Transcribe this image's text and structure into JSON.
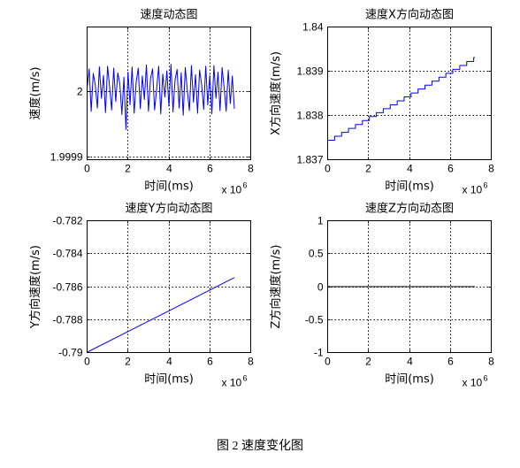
{
  "figure": {
    "caption": "图 2 速度变化图"
  },
  "chart_data": [
    {
      "type": "line",
      "title": "速度动态图",
      "xlabel": "时间(ms)",
      "ylabel": "速度(m/s)",
      "x_multiplier": {
        "base": "x 10",
        "exponent": "6"
      },
      "xticks": [
        "0",
        "2",
        "4",
        "6",
        "8"
      ],
      "yticks": [
        "1.9999",
        "2"
      ],
      "xlim": [
        0,
        8
      ],
      "ylim": [
        1.999896,
        2.000099
      ],
      "grid": true,
      "line_color": "#0000ff",
      "series": [
        {
          "x": [
            0,
            0.1,
            0.2,
            0.3,
            0.4,
            0.5,
            0.6,
            0.7,
            0.8,
            0.9,
            1,
            1.1,
            1.2,
            1.3,
            1.4,
            1.5,
            1.6,
            1.7,
            1.8,
            1.9,
            2,
            2.1,
            2.2,
            2.3,
            2.4,
            2.5,
            2.6,
            2.7,
            2.8,
            2.9,
            3,
            3.1,
            3.2,
            3.3,
            3.4,
            3.5,
            3.6,
            3.7,
            3.8,
            3.9,
            4,
            4.1,
            4.2,
            4.3,
            4.4,
            4.5,
            4.6,
            4.7,
            4.8,
            4.9,
            5,
            5.1,
            5.2,
            5.3,
            5.4,
            5.5,
            5.6,
            5.7,
            5.8,
            5.9,
            6,
            6.1,
            6.2,
            6.3,
            6.4,
            6.5,
            6.6,
            6.7,
            6.8,
            6.9,
            7,
            7.1,
            7.2
          ],
          "y": [
            2.000005,
            2.000035,
            1.99997,
            2.000028,
            2.00001,
            1.999975,
            2.000038,
            1.99999,
            2.000025,
            1.999968,
            2.000039,
            2.000008,
            1.999972,
            2.000036,
            1.999985,
            2.000029,
            2.000012,
            1.999965,
            2.000022,
            1.999942,
            2.00003,
            1.99998,
            2.000038,
            1.999967,
            2.000015,
            2.000036,
            1.999974,
            2.000024,
            1.999988,
            2.000041,
            1.99997,
            2.00002,
            2.000035,
            1.999972,
            2.000004,
            2.000039,
            1.999966,
            2.000027,
            1.999992,
            2.000032,
            1.999978,
            2.000042,
            1.999969,
            2.000018,
            2.000034,
            1.999975,
            2.000029,
            1.999964,
            2.000037,
            2.000002,
            1.999971,
            2.00004,
            1.999984,
            2.000026,
            1.999967,
            2.000033,
            2.000011,
            1.999973,
            2.000039,
            1.99998,
            2.000025,
            1.999966,
            2.00004,
            1.99999,
            2.00003,
            1.999971,
            2.000037,
            2.000006,
            1.99997,
            2.000033,
            1.999982,
            2.000024,
            1.999974
          ]
        }
      ]
    },
    {
      "type": "line",
      "title": "速度X方向动态图",
      "xlabel": "时间(ms)",
      "ylabel": "X方向速度(m/s)",
      "x_multiplier": {
        "base": "x 10",
        "exponent": "6"
      },
      "xticks": [
        "0",
        "2",
        "4",
        "6",
        "8"
      ],
      "yticks": [
        "1.837",
        "1.838",
        "1.839",
        "1.84"
      ],
      "xlim": [
        0,
        8
      ],
      "ylim": [
        1.837,
        1.84
      ],
      "grid": true,
      "line_color": "#0000ff",
      "series": [
        {
          "x": [
            0,
            0.34,
            0.34,
            0.68,
            0.68,
            1.02,
            1.02,
            1.36,
            1.36,
            1.7,
            1.7,
            2.04,
            2.04,
            2.38,
            2.38,
            2.72,
            2.72,
            3.06,
            3.06,
            3.4,
            3.4,
            3.74,
            3.74,
            4.08,
            4.08,
            4.42,
            4.42,
            4.76,
            4.76,
            5.1,
            5.1,
            5.44,
            5.44,
            5.78,
            5.78,
            6.12,
            6.12,
            6.46,
            6.46,
            6.8,
            6.8,
            7.14,
            7.14,
            7.2
          ],
          "y": [
            1.83744,
            1.83744,
            1.837529,
            1.837529,
            1.837618,
            1.837618,
            1.837707,
            1.837707,
            1.837796,
            1.837796,
            1.837885,
            1.837885,
            1.837974,
            1.837974,
            1.838063,
            1.838063,
            1.838152,
            1.838152,
            1.838241,
            1.838241,
            1.83833,
            1.83833,
            1.838419,
            1.838419,
            1.838508,
            1.838508,
            1.838597,
            1.838597,
            1.838686,
            1.838686,
            1.838775,
            1.838775,
            1.838864,
            1.838864,
            1.838953,
            1.838953,
            1.839042,
            1.839042,
            1.839131,
            1.839131,
            1.83922,
            1.83922,
            1.839309,
            1.839309
          ]
        }
      ]
    },
    {
      "type": "line",
      "title": "速度Y方向动态图",
      "xlabel": "时间(ms)",
      "ylabel": "Y方向速度(m/s)",
      "x_multiplier": {
        "base": "x 10",
        "exponent": "6"
      },
      "xticks": [
        "0",
        "2",
        "4",
        "6",
        "8"
      ],
      "yticks": [
        "-0.79",
        "-0.788",
        "-0.786",
        "-0.784",
        "-0.782"
      ],
      "xlim": [
        0,
        8
      ],
      "ylim": [
        -0.79,
        -0.782
      ],
      "grid": true,
      "line_color": "#0000ff",
      "series": [
        {
          "x": [
            0,
            1.8,
            3.6,
            5.4,
            7.2
          ],
          "y": [
            -0.78998,
            -0.78885,
            -0.78772,
            -0.78659,
            -0.78545
          ]
        }
      ]
    },
    {
      "type": "line",
      "title": "速度Z方向动态图",
      "xlabel": "时间(ms)",
      "ylabel": "Z方向速度(m/s)",
      "x_multiplier": {
        "base": "x 10",
        "exponent": "6"
      },
      "xticks": [
        "0",
        "2",
        "4",
        "6",
        "8"
      ],
      "yticks": [
        "-1",
        "-0.5",
        "0",
        "0.5",
        "1"
      ],
      "xlim": [
        0,
        8
      ],
      "ylim": [
        -1,
        1
      ],
      "grid": true,
      "line_color": "#000000",
      "series": [
        {
          "x": [
            0,
            7.2
          ],
          "y": [
            0,
            0
          ]
        }
      ]
    }
  ]
}
